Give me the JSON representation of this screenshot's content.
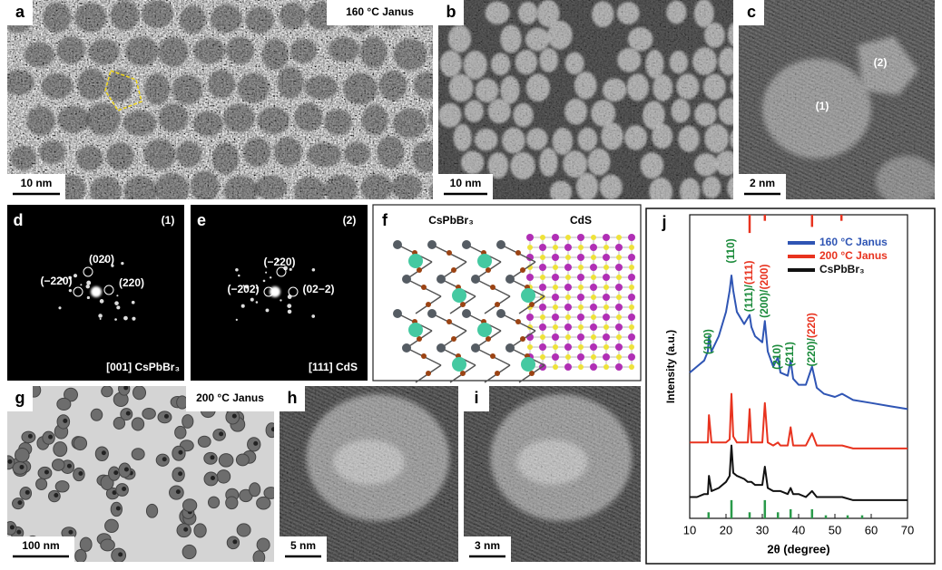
{
  "panels": {
    "a": {
      "label": "a",
      "title": "160 °C Janus",
      "scale_bar": "10 nm"
    },
    "b": {
      "label": "b",
      "scale_bar": "10 nm"
    },
    "c": {
      "label": "c",
      "scale_bar": "2 nm",
      "regions": [
        "(2)",
        "(1)"
      ]
    },
    "d": {
      "label": "d",
      "region": "(1)",
      "spots": [
        "(020)",
        "(−220)",
        "(220)"
      ],
      "zone_axis": "[001] CsPbBr₃"
    },
    "e": {
      "label": "e",
      "region": "(2)",
      "spots": [
        "(−220)",
        "(−202)",
        "(02−2)"
      ],
      "zone_axis": "[111] CdS"
    },
    "f": {
      "label": "f",
      "phases": [
        "CsPbBr₃",
        "CdS"
      ]
    },
    "g": {
      "label": "g",
      "title": "200 °C Janus",
      "scale_bar": "100 nm"
    },
    "h": {
      "label": "h",
      "scale_bar": "5 nm"
    },
    "i": {
      "label": "i",
      "scale_bar": "3 nm"
    },
    "j": {
      "label": "j"
    }
  },
  "chart_data": {
    "type": "line",
    "xlabel": "2θ (degree)",
    "ylabel": "Intensity (a.u.)",
    "x": [
      10,
      12,
      14,
      15,
      15.3,
      16,
      18,
      20,
      21,
      21.5,
      22,
      23,
      25,
      26,
      26.5,
      27,
      28,
      30,
      30.7,
      31.5,
      33,
      34.3,
      35,
      37,
      37.8,
      38.5,
      40,
      42,
      43.7,
      45,
      47,
      50,
      52,
      55,
      60,
      65,
      70
    ],
    "xlim": [
      10,
      70
    ],
    "xticks": [
      10,
      20,
      30,
      40,
      50,
      60,
      70
    ],
    "ylim": [
      0,
      100
    ],
    "legend": "upper right",
    "series": [
      {
        "name": "160 °C Janus",
        "color": "#2f55b4",
        "values": [
          48,
          50,
          52,
          55,
          60,
          55,
          60,
          68,
          75,
          80,
          75,
          68,
          64,
          66,
          67,
          63,
          60,
          58,
          65,
          55,
          50,
          53,
          48,
          47,
          52,
          46,
          44,
          44,
          50,
          43,
          41,
          40,
          41,
          39,
          38,
          37,
          36
        ]
      },
      {
        "name": "200 °C Janus",
        "color": "#e8331f",
        "values": [
          25,
          25,
          25,
          25,
          34,
          25,
          25,
          25,
          26,
          41,
          27,
          25,
          25,
          25,
          36,
          25,
          25,
          25,
          38,
          25,
          24,
          25,
          24,
          24,
          30,
          24,
          24,
          24,
          28,
          24,
          24,
          24,
          24,
          23,
          23,
          23,
          23
        ]
      },
      {
        "name": "CsPbBr₃",
        "color": "#111111",
        "values": [
          7,
          7,
          8,
          8,
          14,
          9,
          10,
          12,
          14,
          24,
          15,
          14,
          13,
          12,
          12,
          12,
          11,
          11,
          17,
          10,
          9,
          9,
          9,
          8,
          10,
          8,
          8,
          7,
          9,
          7,
          7,
          7,
          7,
          6,
          6,
          6,
          6
        ]
      }
    ],
    "reference_peaks": [
      {
        "side": "bottom",
        "color": "#2a9a4a",
        "x": [
          15.2,
          21.5,
          26.5,
          30.7,
          34.3,
          37.8,
          43.7,
          47.5,
          53.5,
          57.5
        ],
        "values": [
          2,
          6,
          2,
          6,
          2,
          3,
          3,
          1,
          1,
          1
        ]
      },
      {
        "side": "top",
        "color": "#e8331f",
        "x": [
          26.5,
          30.7,
          43.7,
          51.8
        ],
        "values": [
          6,
          2,
          4,
          2
        ]
      }
    ],
    "annotations": [
      [
        {
          "text": "(100)",
          "color": "#1a8a3a"
        }
      ],
      [
        {
          "text": "(110)",
          "color": "#1a8a3a"
        }
      ],
      [
        {
          "text": "(111)",
          "color": "#1a8a3a"
        },
        {
          "text": "/",
          "color": "#1a8a3a"
        },
        {
          "text": "(111)",
          "color": "#e8331f"
        }
      ],
      [
        {
          "text": "(200)",
          "color": "#1a8a3a"
        },
        {
          "text": "/",
          "color": "#1a8a3a"
        },
        {
          "text": "(200)",
          "color": "#e8331f"
        }
      ],
      [
        {
          "text": "(210)",
          "color": "#1a8a3a"
        }
      ],
      [
        {
          "text": "(211)",
          "color": "#1a8a3a"
        }
      ],
      [
        {
          "text": "(220)",
          "color": "#1a8a3a"
        },
        {
          "text": "/",
          "color": "#1a8a3a"
        },
        {
          "text": "(220)",
          "color": "#e8331f"
        }
      ]
    ]
  }
}
